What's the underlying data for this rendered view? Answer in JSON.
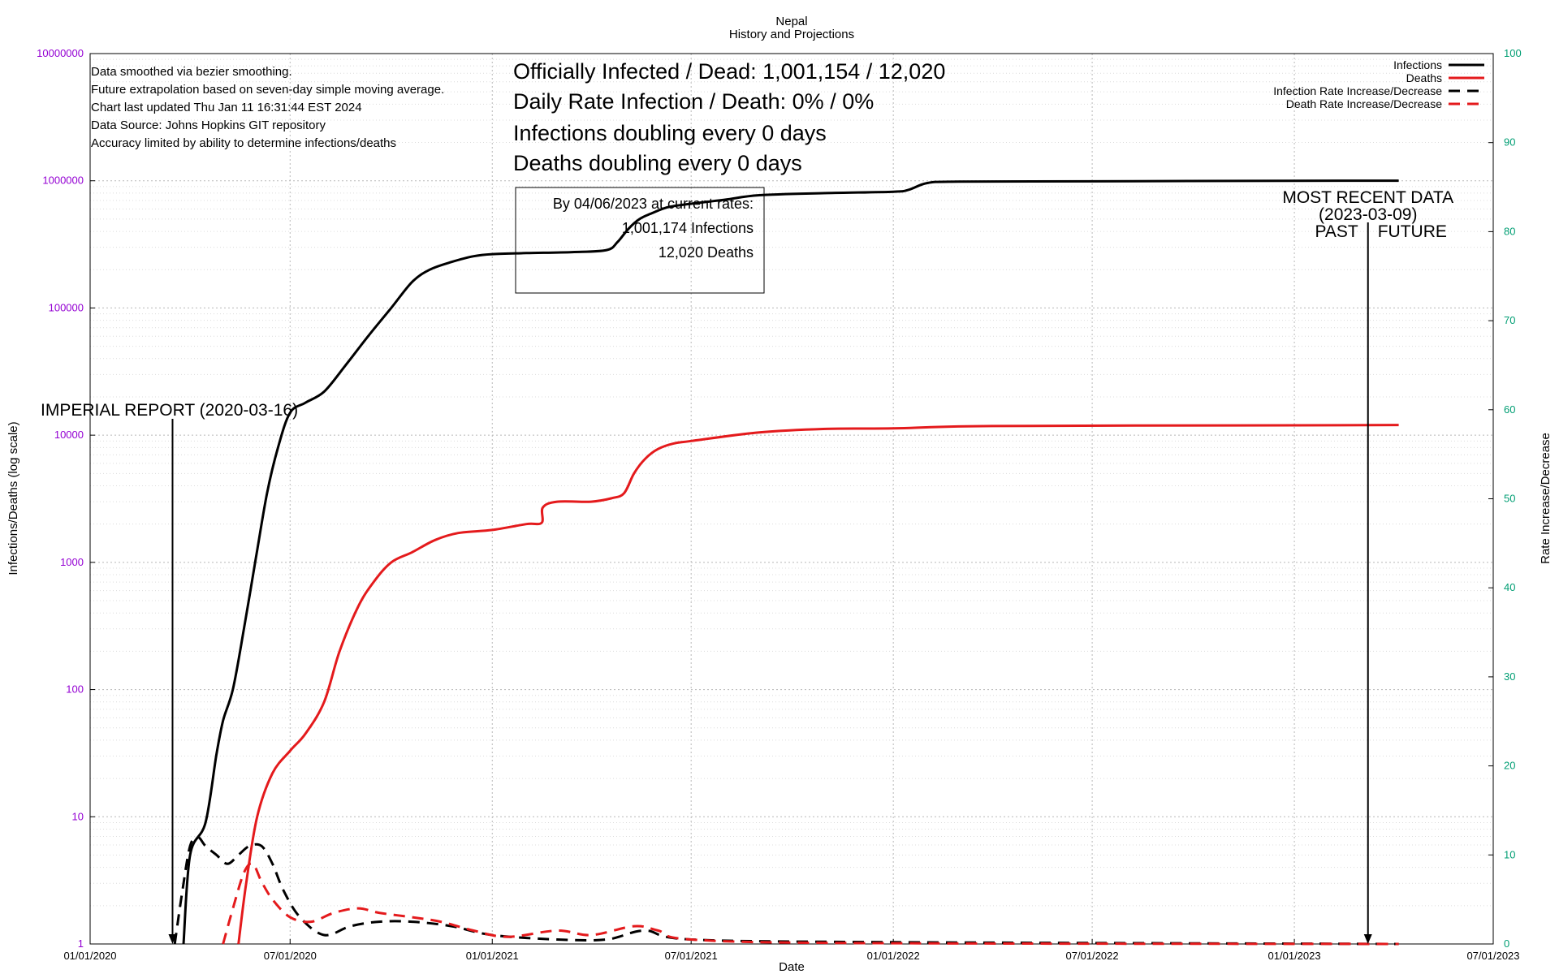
{
  "chart_data": {
    "type": "line",
    "title": "Nepal",
    "subtitle": "History and Projections",
    "xlabel": "Date",
    "ylabel": "Infections/Deaths (log scale)",
    "y2label": "Rate Increase/Decrease",
    "yscale": "log",
    "ylim": [
      1,
      10000000
    ],
    "y2lim": [
      0,
      100
    ],
    "xlim": [
      "2020-01-01",
      "2023-07-01"
    ],
    "grid": true,
    "legend_position": "top-right",
    "x_ticks": [
      "01/01/2020",
      "07/01/2020",
      "01/01/2021",
      "07/01/2021",
      "01/01/2022",
      "07/01/2022",
      "01/01/2023",
      "07/01/2023"
    ],
    "x_tick_dates": [
      "2020-01-01",
      "2020-07-01",
      "2021-01-01",
      "2021-07-01",
      "2022-01-01",
      "2022-07-01",
      "2023-01-01",
      "2023-07-01"
    ],
    "y_ticks": [
      "1",
      "10",
      "100",
      "1000",
      "10000",
      "100000",
      "1000000",
      "10000000"
    ],
    "y_tick_values": [
      1,
      10,
      100,
      1000,
      10000,
      100000,
      1000000,
      10000000
    ],
    "y2_ticks": [
      "0",
      "10",
      "20",
      "30",
      "40",
      "50",
      "60",
      "70",
      "80",
      "90",
      "100"
    ],
    "y2_tick_values": [
      0,
      10,
      20,
      30,
      40,
      50,
      60,
      70,
      80,
      90,
      100
    ],
    "series": [
      {
        "name": "Infections",
        "axis": "left",
        "color": "#000000",
        "dash": "solid",
        "x": [
          "2020-03-26",
          "2020-04-01",
          "2020-04-15",
          "2020-04-25",
          "2020-05-01",
          "2020-05-10",
          "2020-05-20",
          "2020-05-31",
          "2020-06-10",
          "2020-06-20",
          "2020-07-01",
          "2020-07-15",
          "2020-08-01",
          "2020-08-20",
          "2020-09-10",
          "2020-10-01",
          "2020-10-20",
          "2020-11-05",
          "2020-11-25",
          "2020-12-15",
          "2021-01-01",
          "2021-02-01",
          "2021-03-15",
          "2021-04-15",
          "2021-04-25",
          "2021-05-05",
          "2021-05-15",
          "2021-05-25",
          "2021-06-10",
          "2021-07-01",
          "2021-08-01",
          "2021-09-01",
          "2021-11-01",
          "2022-01-01",
          "2022-01-15",
          "2022-02-01",
          "2022-03-01",
          "2022-07-01",
          "2023-01-01",
          "2023-04-06"
        ],
        "y": [
          1,
          5,
          9,
          31,
          57,
          101,
          300,
          1100,
          3500,
          8000,
          15000,
          18000,
          22000,
          35000,
          60000,
          100000,
          160000,
          200000,
          230000,
          255000,
          265000,
          270000,
          275000,
          285000,
          330000,
          420000,
          500000,
          550000,
          620000,
          660000,
          710000,
          770000,
          800000,
          820000,
          850000,
          960000,
          985000,
          990000,
          1000000,
          1001174
        ]
      },
      {
        "name": "Deaths",
        "axis": "left",
        "color": "#e41a1c",
        "dash": "solid",
        "x": [
          "2020-05-15",
          "2020-05-22",
          "2020-06-01",
          "2020-06-15",
          "2020-07-01",
          "2020-07-15",
          "2020-08-01",
          "2020-08-15",
          "2020-09-01",
          "2020-09-15",
          "2020-10-01",
          "2020-10-20",
          "2020-11-10",
          "2020-12-01",
          "2021-01-01",
          "2021-02-01",
          "2021-02-15",
          "2021-02-16",
          "2021-03-01",
          "2021-04-01",
          "2021-04-20",
          "2021-05-01",
          "2021-05-10",
          "2021-05-20",
          "2021-06-01",
          "2021-06-15",
          "2021-07-01",
          "2021-09-01",
          "2021-11-01",
          "2022-01-01",
          "2022-04-01",
          "2023-01-01",
          "2023-04-06"
        ],
        "y": [
          1,
          3,
          10,
          22,
          33,
          45,
          80,
          200,
          450,
          700,
          1000,
          1200,
          1500,
          1700,
          1800,
          2000,
          2050,
          2700,
          3000,
          3000,
          3200,
          3500,
          5000,
          6500,
          7800,
          8600,
          9000,
          10500,
          11200,
          11300,
          11800,
          11950,
          12020
        ]
      },
      {
        "name": "Infection Rate Increase/Decrease",
        "axis": "right",
        "color": "#000000",
        "dash": "dashed",
        "x": [
          "2020-03-18",
          "2020-03-25",
          "2020-04-01",
          "2020-04-08",
          "2020-04-15",
          "2020-04-25",
          "2020-05-05",
          "2020-05-15",
          "2020-05-25",
          "2020-06-05",
          "2020-06-15",
          "2020-06-25",
          "2020-07-10",
          "2020-08-01",
          "2020-08-25",
          "2020-09-20",
          "2020-10-20",
          "2020-11-25",
          "2021-01-01",
          "2021-03-01",
          "2021-04-15",
          "2021-05-20",
          "2021-07-01",
          "2022-01-01",
          "2023-04-06"
        ],
        "y": [
          0,
          6,
          11,
          12,
          11,
          10,
          9,
          10,
          11,
          11,
          9,
          6,
          3,
          1,
          2,
          2.5,
          2.5,
          2,
          1,
          0.5,
          0.5,
          1.5,
          0.5,
          0.2,
          0
        ]
      },
      {
        "name": "Death Rate Increase/Decrease",
        "axis": "right",
        "color": "#e41a1c",
        "dash": "dashed",
        "x": [
          "2020-05-01",
          "2020-05-10",
          "2020-05-20",
          "2020-05-28",
          "2020-06-05",
          "2020-06-15",
          "2020-07-01",
          "2020-07-20",
          "2020-08-10",
          "2020-09-01",
          "2020-09-20",
          "2020-10-20",
          "2020-11-15",
          "2020-12-15",
          "2021-01-15",
          "2021-03-01",
          "2021-04-01",
          "2021-05-10",
          "2021-06-01",
          "2021-07-01",
          "2021-12-01",
          "2023-04-06"
        ],
        "y": [
          0,
          4,
          8,
          9,
          7,
          5,
          3,
          2.5,
          3.5,
          4,
          3.5,
          3,
          2.5,
          1.5,
          0.8,
          1.5,
          1,
          2,
          1.5,
          0.5,
          0.1,
          0
        ]
      }
    ],
    "annotations": {
      "info_lines": [
        "Data smoothed via bezier smoothing.",
        "Future extrapolation based on seven-day simple moving average.",
        "Chart last updated Thu Jan 11 16:31:44 EST 2024",
        "Data Source: Johns Hopkins GIT repository",
        "Accuracy limited by ability to determine infections/deaths"
      ],
      "stats_lines": [
        "Officially Infected / Dead:  1,001,154 / 12,020",
        "Daily Rate Infection / Death:  0% / 0%",
        "Infections doubling every 0 days",
        "Deaths doubling every 0 days"
      ],
      "projection_lines": [
        "By 04/06/2023 at current rates:",
        "1,001,174 Infections",
        "12,020 Deaths"
      ],
      "imperial_label": "IMPERIAL REPORT (2020-03-16)",
      "imperial_date": "2020-03-16",
      "recent_label": "MOST RECENT DATA",
      "recent_date_label": "(2023-03-09)",
      "recent_date": "2023-03-09",
      "past_label": "PAST",
      "future_label": "FUTURE"
    }
  }
}
